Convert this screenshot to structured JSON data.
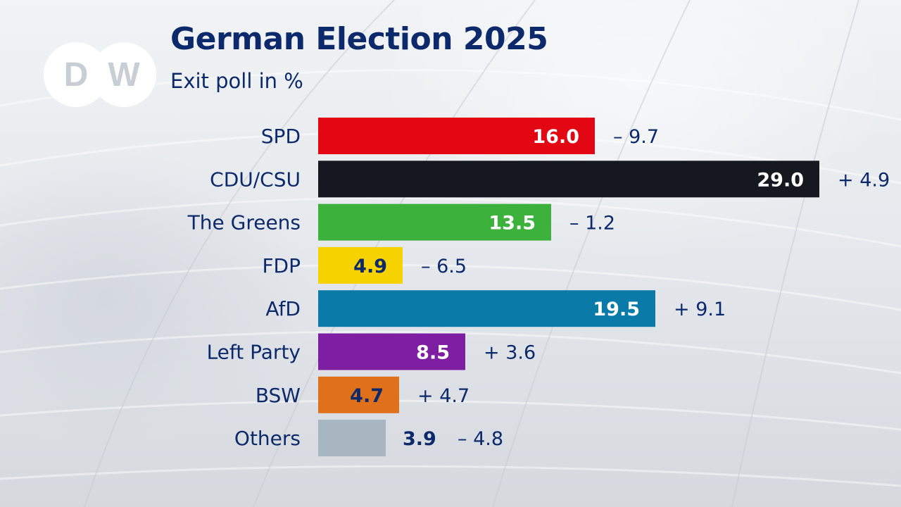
{
  "title": "German Election 2025",
  "subtitle": "Exit poll in %",
  "logo_text": "DW",
  "chart_data": {
    "type": "bar",
    "orientation": "horizontal",
    "title": "German Election 2025",
    "subtitle": "Exit poll in %",
    "categories": [
      "SPD",
      "CDU/CSU",
      "The Greens",
      "FDP",
      "AfD",
      "Left Party",
      "BSW",
      "Others"
    ],
    "values": [
      16.0,
      29.0,
      13.5,
      4.9,
      19.5,
      8.5,
      4.7,
      3.9
    ],
    "value_labels": [
      "16.0",
      "29.0",
      "13.5",
      "4.9",
      "19.5",
      "8.5",
      "4.7",
      "3.9"
    ],
    "change_labels": [
      "– 9.7",
      "+ 4.9",
      "– 1.2",
      "– 6.5",
      "+ 9.1",
      "+ 3.6",
      "+ 4.7",
      "– 4.8"
    ],
    "colors": [
      "#e30613",
      "#15181f",
      "#3cb13b",
      "#f5d200",
      "#0a7aa8",
      "#7e1fa3",
      "#e0701a",
      "#a7b6c0"
    ],
    "label_colors": [
      "#ffffff",
      "#ffffff",
      "#ffffff",
      "#0c2a6b",
      "#ffffff",
      "#ffffff",
      "#0c2a6b",
      "#0c2a6b"
    ],
    "xlim": [
      0,
      29.0
    ],
    "grid": false,
    "legend": "none"
  }
}
